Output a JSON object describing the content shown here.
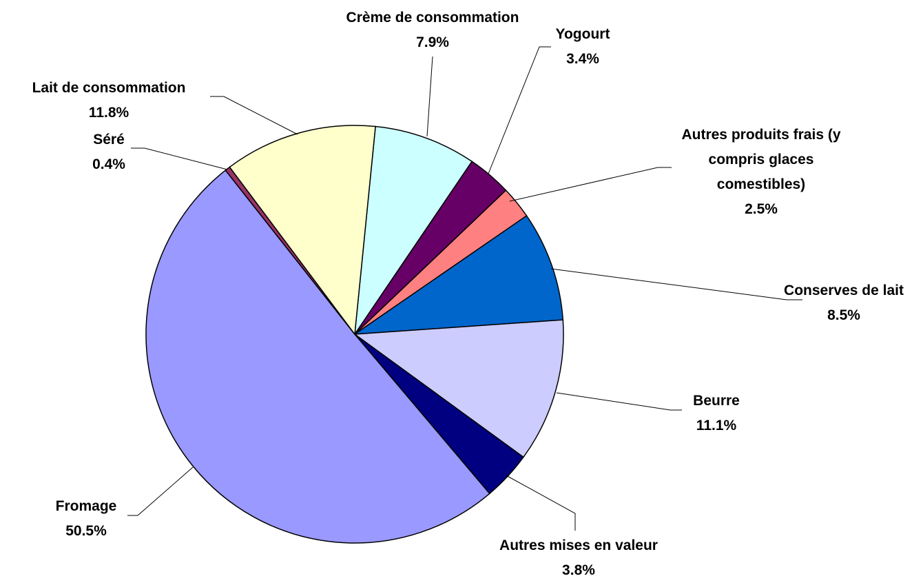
{
  "chart_data": {
    "type": "pie",
    "categories": [
      "Crème de consommation",
      "Yogourt",
      "Autres produits frais (y compris glaces comestibles)",
      "Conserves de lait",
      "Beurre",
      "Autres mises en valeur",
      "Fromage",
      "Séré",
      "Lait de consommation"
    ],
    "values": [
      7.9,
      3.4,
      2.5,
      8.5,
      11.1,
      3.8,
      50.5,
      0.4,
      11.8
    ],
    "value_labels": [
      "7.9%",
      "3.4%",
      "2.5%",
      "8.5%",
      "11.1%",
      "3.8%",
      "50.5%",
      "0.4%",
      "11.8%"
    ],
    "colors": [
      "#ccffff",
      "#660066",
      "#ff8080",
      "#0066cc",
      "#ccccff",
      "#000080",
      "#9999ff",
      "#993366",
      "#ffffcc"
    ]
  }
}
